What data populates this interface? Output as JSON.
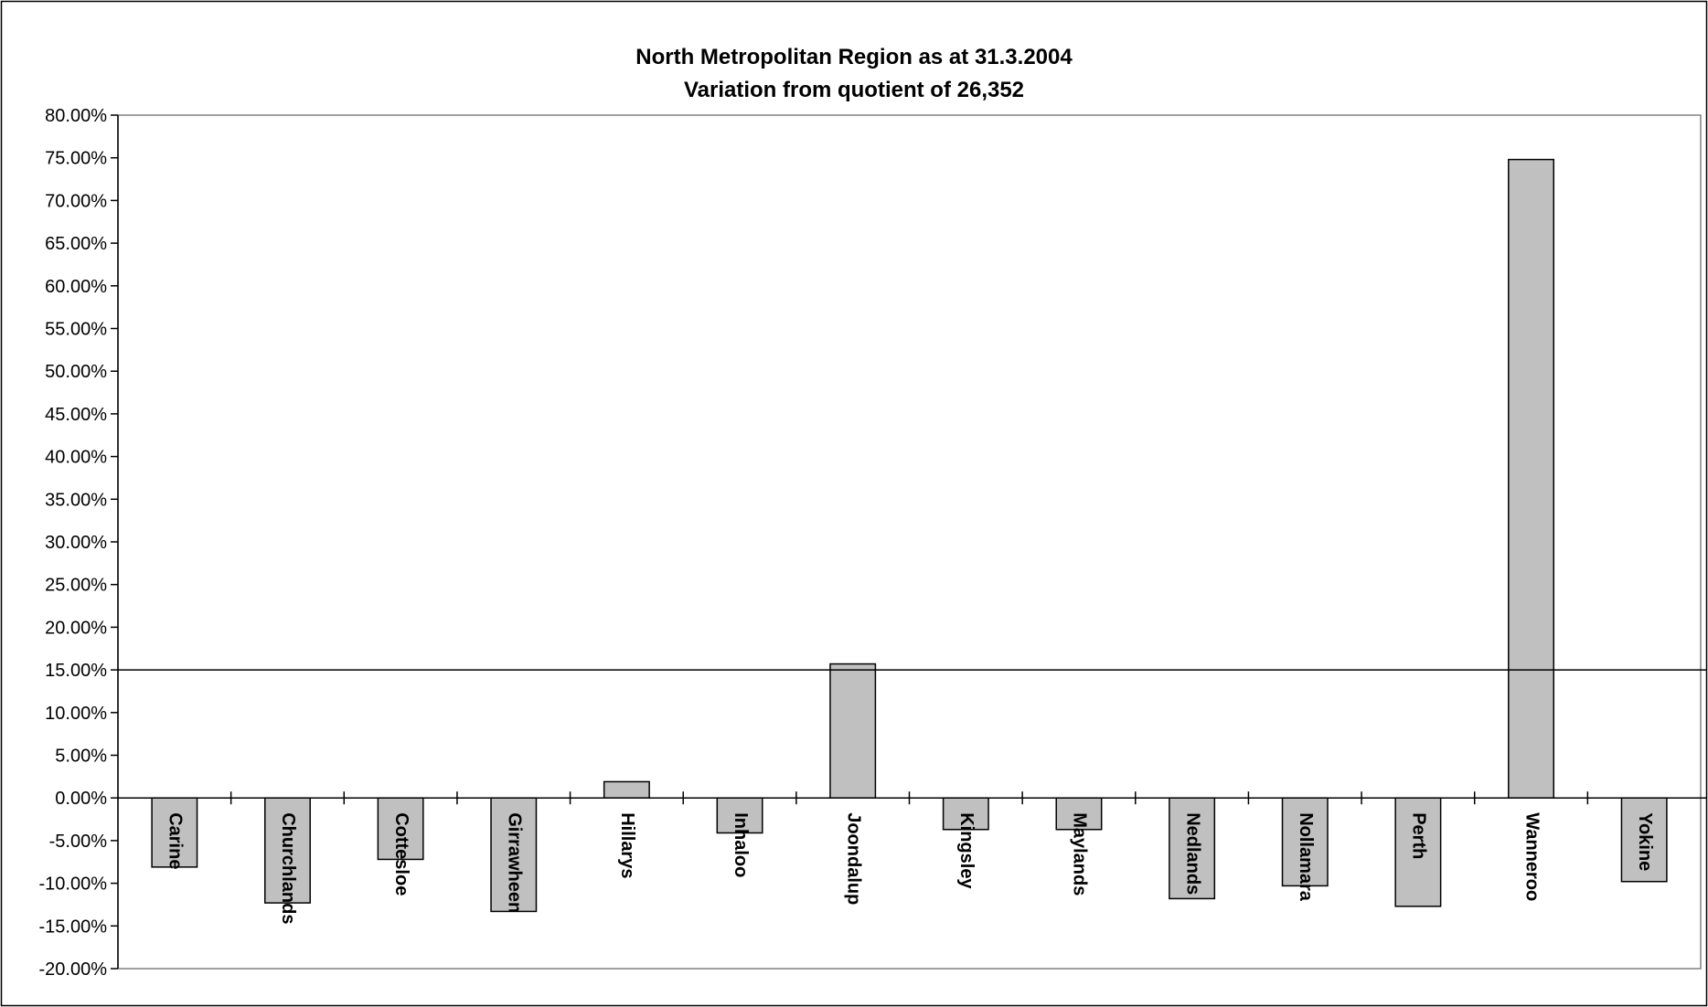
{
  "chart_data": {
    "type": "bar",
    "title_lines": [
      "North Metropolitan Region as at 31.3.2004",
      "Variation from quotient of 26,352"
    ],
    "categories": [
      "Carine",
      "Churchlands",
      "Cottesloe",
      "Girrawheen",
      "Hillarys",
      "Inhaloo",
      "Joondalup",
      "Kingsley",
      "Maylands",
      "Nedlands",
      "Nollamara",
      "Perth",
      "Wanneroo",
      "Yokine"
    ],
    "values": [
      -8.1,
      -12.3,
      -7.2,
      -13.3,
      1.9,
      -4.1,
      15.7,
      -3.7,
      -3.7,
      -11.8,
      -10.3,
      -12.7,
      74.8,
      -9.8
    ],
    "ylim": [
      -20,
      80
    ],
    "ytick_step": 5,
    "ytick_labels": [
      "80.00%",
      "75.00%",
      "70.00%",
      "65.00%",
      "60.00%",
      "55.00%",
      "50.00%",
      "45.00%",
      "40.00%",
      "35.00%",
      "30.00%",
      "25.00%",
      "20.00%",
      "15.00%",
      "10.00%",
      "5.00%",
      "0.00%",
      "-5.00%",
      "-10.00%",
      "-15.00%",
      "-20.00%"
    ],
    "reference_line": 15,
    "bar_color": "#c0c0c0",
    "bar_edge_color": "#000000",
    "grid": false,
    "legend": "none",
    "xlabel": "",
    "ylabel": ""
  }
}
